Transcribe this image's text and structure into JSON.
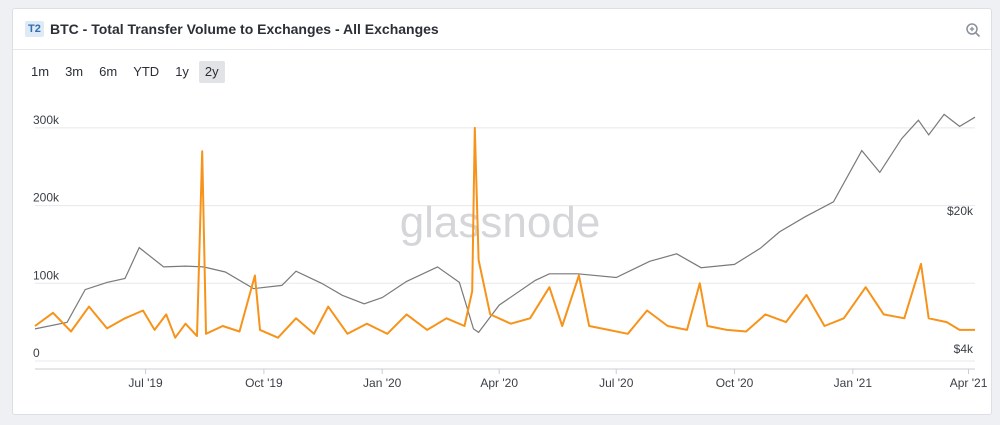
{
  "header": {
    "badge": "T2",
    "title": "BTC - Total Transfer Volume to Exchanges - All Exchanges",
    "zoom_icon": "zoom-in-icon"
  },
  "range_buttons": [
    {
      "label": "1m",
      "active": false
    },
    {
      "label": "3m",
      "active": false
    },
    {
      "label": "6m",
      "active": false
    },
    {
      "label": "YTD",
      "active": false
    },
    {
      "label": "1y",
      "active": false
    },
    {
      "label": "2y",
      "active": true
    }
  ],
  "watermark": "glassnode",
  "colors": {
    "volume": "#f7931a",
    "price": "#7a7a7a",
    "grid": "#e6e8eb"
  },
  "chart_data": {
    "type": "line",
    "x_range": [
      "2019-04-06",
      "2021-04-06"
    ],
    "x_ticks": [
      {
        "date": "2019-07-01",
        "label": "Jul '19"
      },
      {
        "date": "2019-10-01",
        "label": "Oct '19"
      },
      {
        "date": "2020-01-01",
        "label": "Jan '20"
      },
      {
        "date": "2020-04-01",
        "label": "Apr '20"
      },
      {
        "date": "2020-07-01",
        "label": "Jul '20"
      },
      {
        "date": "2020-10-01",
        "label": "Oct '20"
      },
      {
        "date": "2021-01-01",
        "label": "Jan '21"
      },
      {
        "date": "2021-04-01",
        "label": "Apr '21"
      }
    ],
    "y_left": {
      "min": 0,
      "max": 350000,
      "ticks": [
        {
          "value": 0,
          "label": "0"
        },
        {
          "value": 100000,
          "label": "100k"
        },
        {
          "value": 200000,
          "label": "200k"
        },
        {
          "value": 300000,
          "label": "300k"
        }
      ]
    },
    "y_right": {
      "scale": "log",
      "ticks": [
        {
          "value": 4000,
          "label": "$4k"
        },
        {
          "value": 20000,
          "label": "$20k"
        }
      ]
    },
    "grid": true,
    "series": [
      {
        "name": "",
        "axis": "left",
        "color": "#f7931a",
        "points": [
          [
            "2019-04-06",
            45000
          ],
          [
            "2019-04-20",
            62000
          ],
          [
            "2019-05-04",
            38000
          ],
          [
            "2019-05-18",
            70000
          ],
          [
            "2019-06-01",
            42000
          ],
          [
            "2019-06-15",
            55000
          ],
          [
            "2019-06-29",
            65000
          ],
          [
            "2019-07-08",
            40000
          ],
          [
            "2019-07-17",
            60000
          ],
          [
            "2019-07-24",
            30000
          ],
          [
            "2019-08-01",
            48000
          ],
          [
            "2019-08-10",
            32000
          ],
          [
            "2019-08-14",
            270000
          ],
          [
            "2019-08-17",
            35000
          ],
          [
            "2019-08-30",
            45000
          ],
          [
            "2019-09-12",
            38000
          ],
          [
            "2019-09-24",
            110000
          ],
          [
            "2019-09-28",
            40000
          ],
          [
            "2019-10-12",
            30000
          ],
          [
            "2019-10-26",
            55000
          ],
          [
            "2019-11-09",
            35000
          ],
          [
            "2019-11-20",
            70000
          ],
          [
            "2019-12-05",
            35000
          ],
          [
            "2019-12-20",
            48000
          ],
          [
            "2020-01-05",
            35000
          ],
          [
            "2020-01-20",
            60000
          ],
          [
            "2020-02-05",
            40000
          ],
          [
            "2020-02-20",
            55000
          ],
          [
            "2020-03-05",
            45000
          ],
          [
            "2020-03-11",
            90000
          ],
          [
            "2020-03-13",
            300000
          ],
          [
            "2020-03-16",
            130000
          ],
          [
            "2020-03-25",
            60000
          ],
          [
            "2020-04-10",
            48000
          ],
          [
            "2020-04-25",
            55000
          ],
          [
            "2020-05-10",
            95000
          ],
          [
            "2020-05-20",
            45000
          ],
          [
            "2020-06-02",
            110000
          ],
          [
            "2020-06-10",
            45000
          ],
          [
            "2020-06-25",
            40000
          ],
          [
            "2020-07-10",
            35000
          ],
          [
            "2020-07-25",
            65000
          ],
          [
            "2020-08-10",
            45000
          ],
          [
            "2020-08-25",
            40000
          ],
          [
            "2020-09-04",
            100000
          ],
          [
            "2020-09-10",
            45000
          ],
          [
            "2020-09-25",
            40000
          ],
          [
            "2020-10-10",
            38000
          ],
          [
            "2020-10-25",
            60000
          ],
          [
            "2020-11-10",
            50000
          ],
          [
            "2020-11-26",
            85000
          ],
          [
            "2020-12-10",
            45000
          ],
          [
            "2020-12-25",
            55000
          ],
          [
            "2021-01-11",
            95000
          ],
          [
            "2021-01-25",
            60000
          ],
          [
            "2021-02-10",
            55000
          ],
          [
            "2021-02-23",
            125000
          ],
          [
            "2021-03-01",
            55000
          ],
          [
            "2021-03-15",
            50000
          ],
          [
            "2021-03-25",
            40000
          ],
          [
            "2021-04-06",
            40000
          ]
        ]
      },
      {
        "name": "",
        "axis": "right",
        "color": "#7a7a7a",
        "points": [
          [
            "2019-04-06",
            5000
          ],
          [
            "2019-05-01",
            5400
          ],
          [
            "2019-05-15",
            7900
          ],
          [
            "2019-06-01",
            8600
          ],
          [
            "2019-06-15",
            9000
          ],
          [
            "2019-06-26",
            12900
          ],
          [
            "2019-07-15",
            10300
          ],
          [
            "2019-08-01",
            10400
          ],
          [
            "2019-08-15",
            10300
          ],
          [
            "2019-09-01",
            9700
          ],
          [
            "2019-09-23",
            8000
          ],
          [
            "2019-10-15",
            8300
          ],
          [
            "2019-10-26",
            9800
          ],
          [
            "2019-11-15",
            8500
          ],
          [
            "2019-12-01",
            7400
          ],
          [
            "2019-12-18",
            6700
          ],
          [
            "2020-01-01",
            7200
          ],
          [
            "2020-01-20",
            8700
          ],
          [
            "2020-02-13",
            10300
          ],
          [
            "2020-03-01",
            8600
          ],
          [
            "2020-03-12",
            5000
          ],
          [
            "2020-03-16",
            4800
          ],
          [
            "2020-04-01",
            6600
          ],
          [
            "2020-04-29",
            8800
          ],
          [
            "2020-05-10",
            9500
          ],
          [
            "2020-06-01",
            9500
          ],
          [
            "2020-07-01",
            9100
          ],
          [
            "2020-07-27",
            11000
          ],
          [
            "2020-08-17",
            12000
          ],
          [
            "2020-09-05",
            10200
          ],
          [
            "2020-10-01",
            10600
          ],
          [
            "2020-10-21",
            12800
          ],
          [
            "2020-11-05",
            15500
          ],
          [
            "2020-11-25",
            18500
          ],
          [
            "2020-12-17",
            22000
          ],
          [
            "2021-01-08",
            40000
          ],
          [
            "2021-01-22",
            31000
          ],
          [
            "2021-02-08",
            46000
          ],
          [
            "2021-02-21",
            57000
          ],
          [
            "2021-03-01",
            48000
          ],
          [
            "2021-03-13",
            61000
          ],
          [
            "2021-03-25",
            53000
          ],
          [
            "2021-04-06",
            59000
          ]
        ]
      }
    ]
  }
}
